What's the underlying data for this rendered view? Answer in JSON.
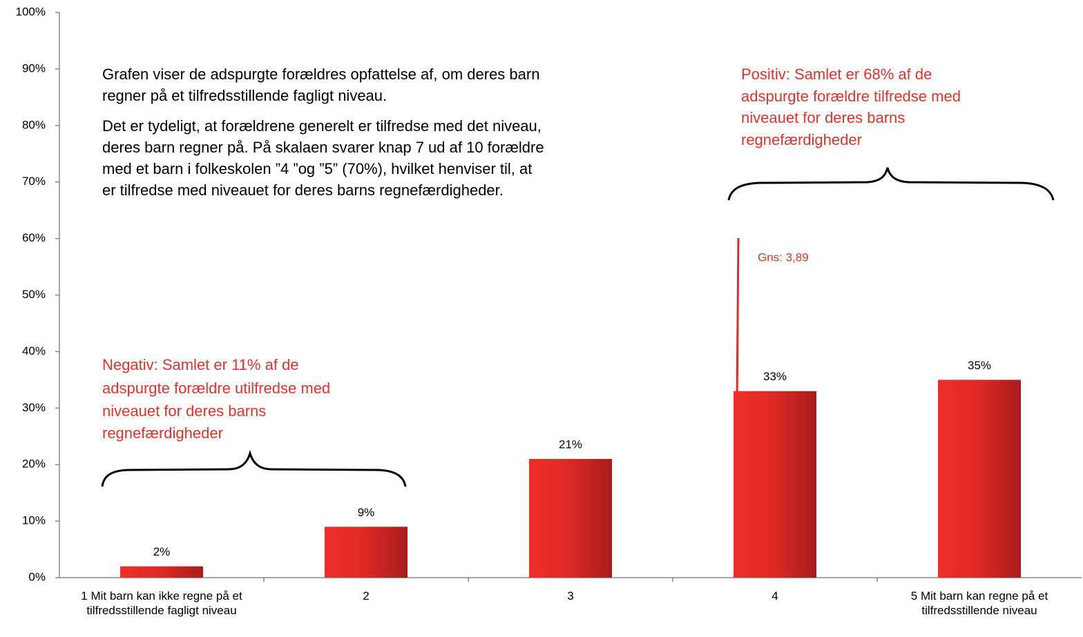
{
  "chart_data": {
    "type": "bar",
    "categories": [
      "1 Mit barn kan ikke regne på et tilfredsstillende fagligt niveau",
      "2",
      "3",
      "4",
      "5 Mit barn kan regne på et tilfredsstillende niveau"
    ],
    "values": [
      2,
      9,
      21,
      33,
      35
    ],
    "value_labels": [
      "2%",
      "9%",
      "21%",
      "33%",
      "35%"
    ],
    "color": "#e02a26",
    "ylim": [
      0,
      100
    ],
    "yticks": [
      {
        "value": 0,
        "label": "0%"
      },
      {
        "value": 10,
        "label": "10%"
      },
      {
        "value": 20,
        "label": "20%"
      },
      {
        "value": 30,
        "label": "30%"
      },
      {
        "value": 40,
        "label": "40%"
      },
      {
        "value": 50,
        "label": "50%"
      },
      {
        "value": 60,
        "label": "60%"
      },
      {
        "value": 70,
        "label": "70%"
      },
      {
        "value": 80,
        "label": "80%"
      },
      {
        "value": 90,
        "label": "90%"
      },
      {
        "value": 100,
        "label": "100%"
      }
    ],
    "description": [
      [
        "Grafen viser de adspurgte forældres opfattelse af, om deres barn",
        "regner på et tilfredsstillende fagligt niveau."
      ],
      [
        "Det er tydeligt, at forældrene generelt er tilfredse med det niveau,",
        "deres barn regner på. På skalaen svarer knap 7 ud af 10 forældre",
        "med et barn i folkeskolen ”4 ”og ”5” (70%), hvilket henviser til, at",
        "er tilfredse med niveauet for deres barns regnefærdigheder."
      ]
    ],
    "positive_note": [
      "Positiv: Samlet er 68% af de",
      "adspurgte forældre tilfredse med",
      "niveauet for deres barns",
      "regnefærdigheder"
    ],
    "negative_note": [
      "Negativ: Samlet er 11% af de",
      "adspurgte forældre utilfredse med",
      "niveauet for deres barns",
      "regnefærdigheder"
    ],
    "mean_note": "Gns: 3,89"
  }
}
